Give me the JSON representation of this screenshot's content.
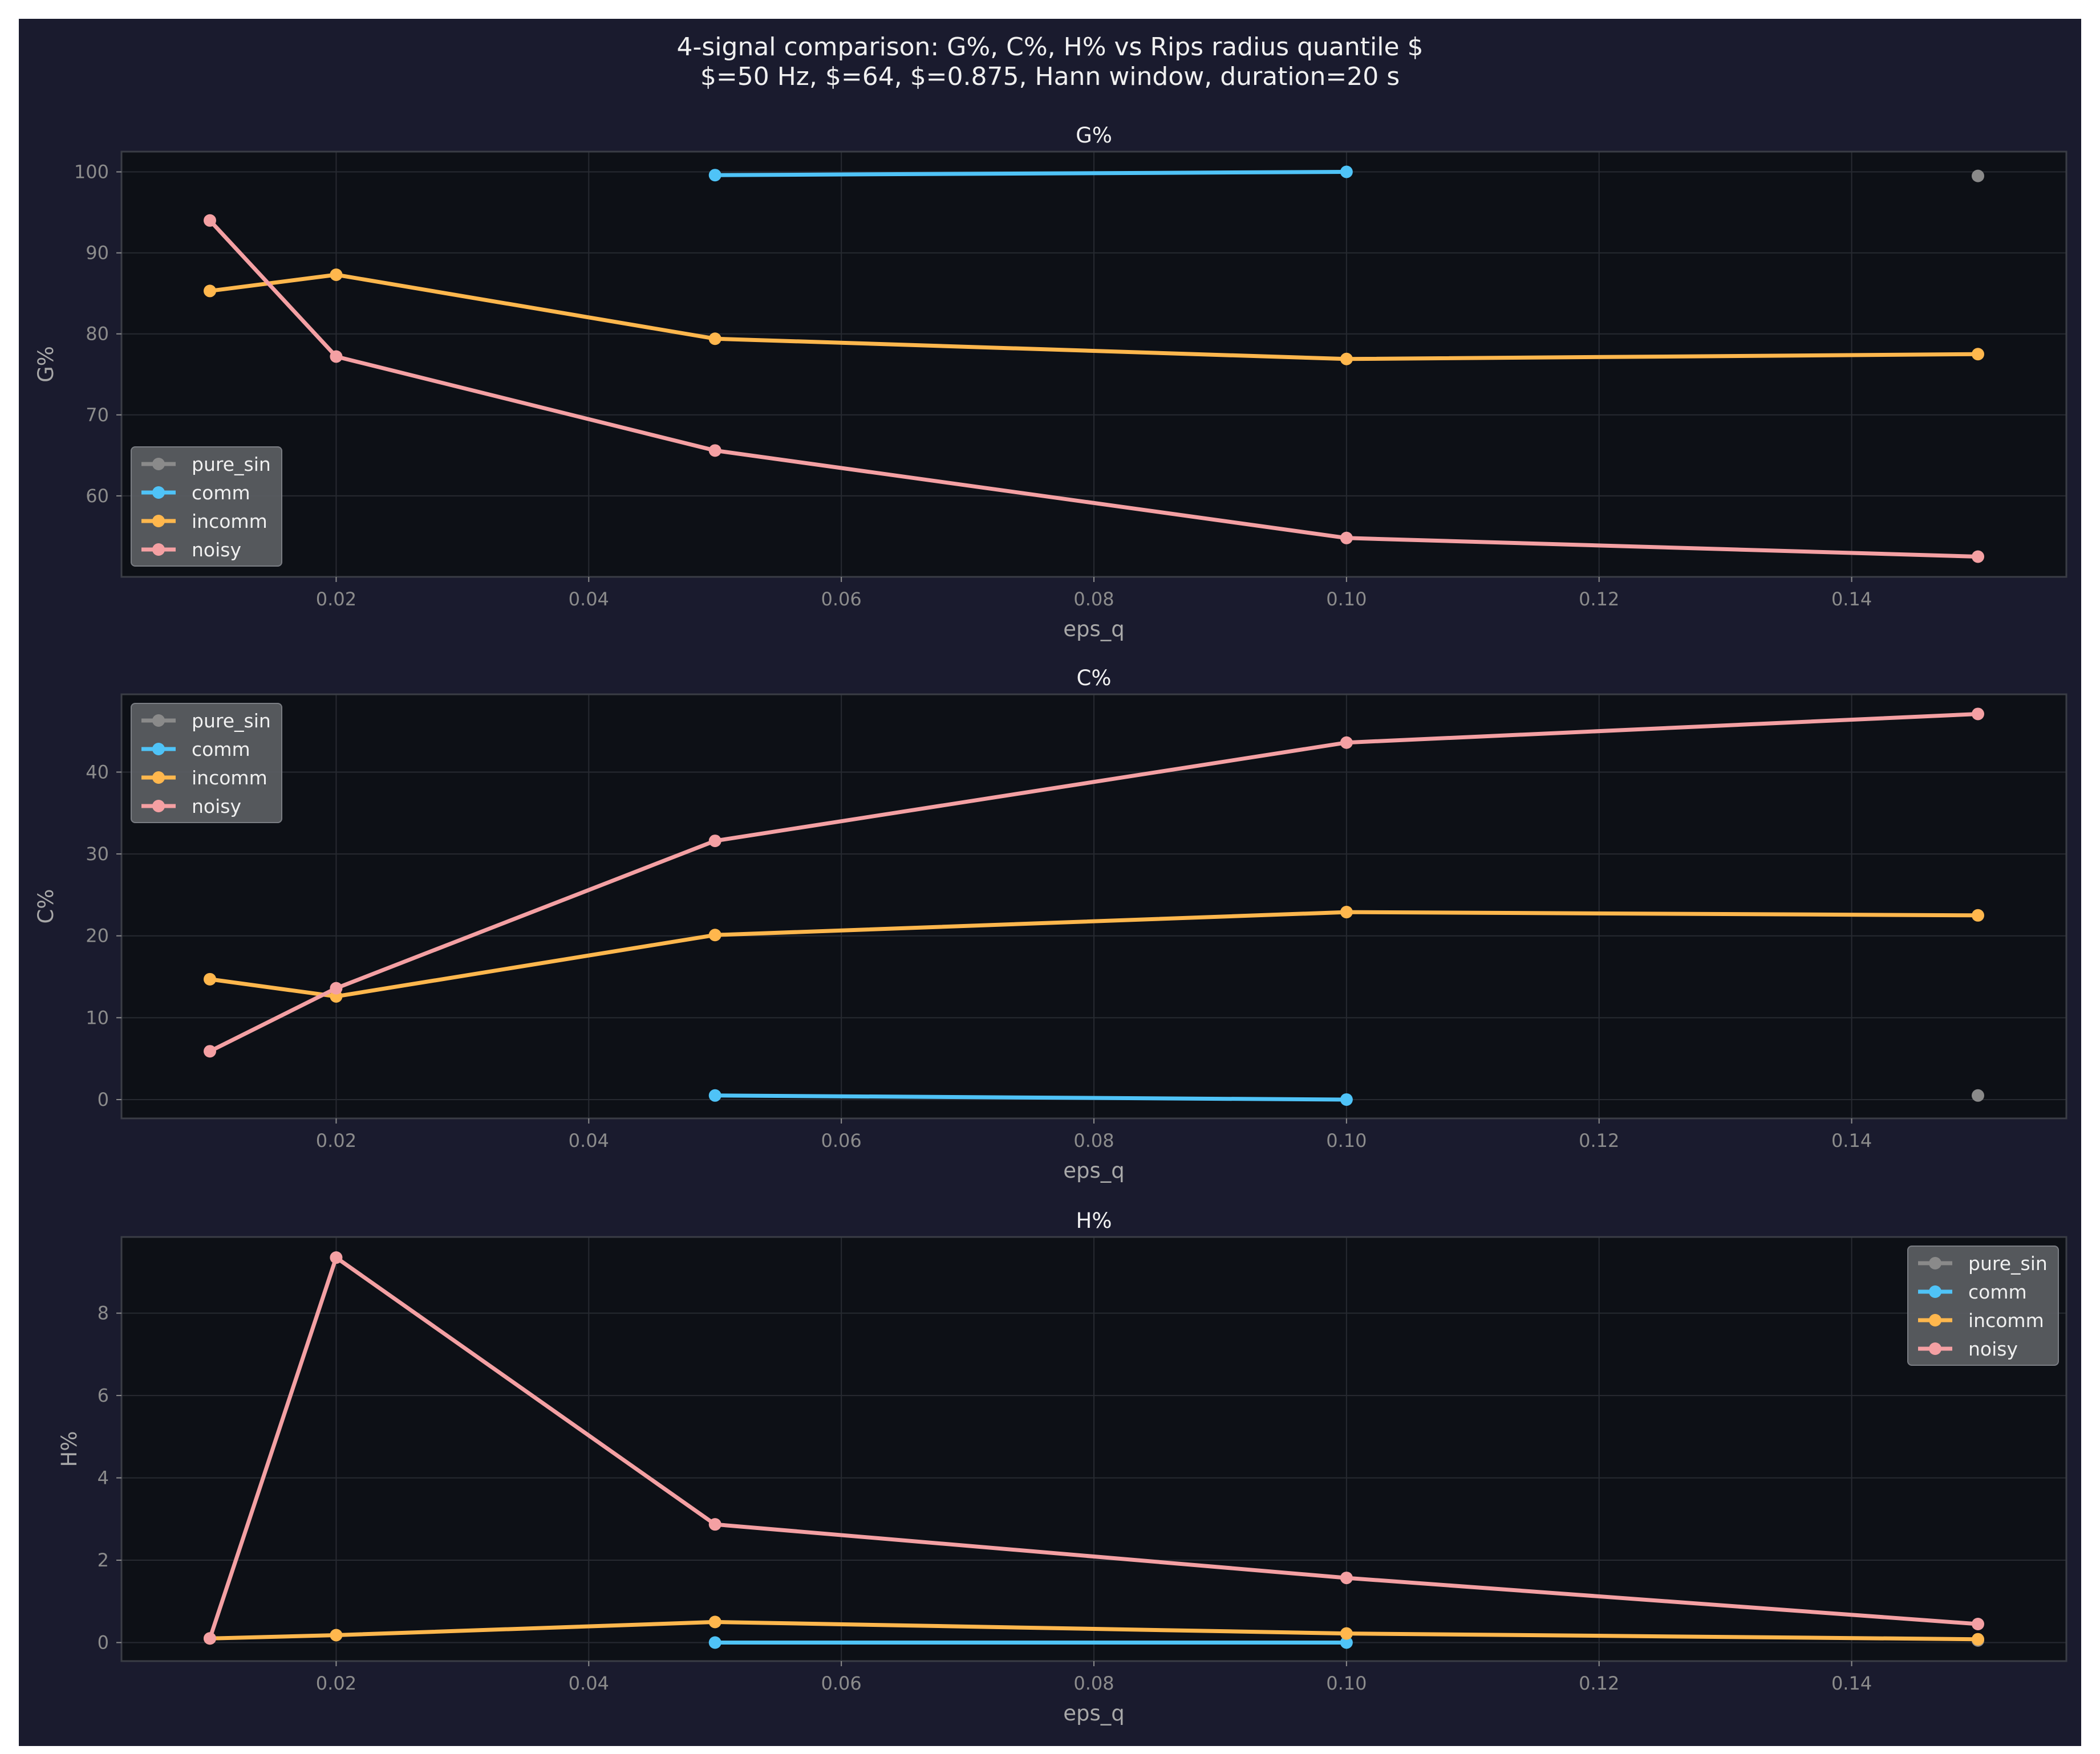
{
  "figure": {
    "title_line1": "4-signal comparison: G%, C%, H% vs Rips radius quantile $",
    "title_line2": "$=50 Hz, $=64, $=0.875, Hann window, duration=20 s"
  },
  "colors": {
    "pure_sin": "#8a8a8a",
    "comm": "#4fc3f7",
    "incomm": "#ffb74d",
    "noisy": "#f4a0a3",
    "figure_bg": "#1a1b2e",
    "plot_bg": "#0d1016",
    "legend_bg": "#5b5e63"
  },
  "chart_data": [
    {
      "type": "line",
      "title": "G%",
      "xlabel": "eps_q",
      "ylabel": "G%",
      "xlim": [
        0.003,
        0.157
      ],
      "ylim": [
        50,
        102.5
      ],
      "xticks": [
        0.02,
        0.04,
        0.06,
        0.08,
        0.1,
        0.12,
        0.14
      ],
      "xtick_labels": [
        "0.02",
        "0.04",
        "0.06",
        "0.08",
        "0.10",
        "0.12",
        "0.14"
      ],
      "yticks": [
        60,
        70,
        80,
        90,
        100
      ],
      "ytick_labels": [
        "60",
        "70",
        "80",
        "90",
        "100"
      ],
      "grid": true,
      "legend_position": "lower-left",
      "series": [
        {
          "name": "pure_sin",
          "x": [
            0.15
          ],
          "y": [
            99.5
          ]
        },
        {
          "name": "comm",
          "x": [
            0.05,
            0.1
          ],
          "y": [
            99.6,
            100.0
          ]
        },
        {
          "name": "incomm",
          "x": [
            0.01,
            0.02,
            0.05,
            0.1,
            0.15
          ],
          "y": [
            85.3,
            87.3,
            79.4,
            76.9,
            77.5
          ]
        },
        {
          "name": "noisy",
          "x": [
            0.01,
            0.02,
            0.05,
            0.1,
            0.15
          ],
          "y": [
            94.0,
            77.2,
            65.6,
            54.8,
            52.5
          ]
        }
      ]
    },
    {
      "type": "line",
      "title": "C%",
      "xlabel": "eps_q",
      "ylabel": "C%",
      "xlim": [
        0.003,
        0.157
      ],
      "ylim": [
        -2.3,
        49.5
      ],
      "xticks": [
        0.02,
        0.04,
        0.06,
        0.08,
        0.1,
        0.12,
        0.14
      ],
      "xtick_labels": [
        "0.02",
        "0.04",
        "0.06",
        "0.08",
        "0.10",
        "0.12",
        "0.14"
      ],
      "yticks": [
        0,
        10,
        20,
        30,
        40
      ],
      "ytick_labels": [
        "0",
        "10",
        "20",
        "30",
        "40"
      ],
      "grid": true,
      "legend_position": "upper-left",
      "series": [
        {
          "name": "pure_sin",
          "x": [
            0.15
          ],
          "y": [
            0.5
          ]
        },
        {
          "name": "comm",
          "x": [
            0.05,
            0.1
          ],
          "y": [
            0.5,
            0.0
          ]
        },
        {
          "name": "incomm",
          "x": [
            0.01,
            0.02,
            0.05,
            0.1,
            0.15
          ],
          "y": [
            14.7,
            12.6,
            20.1,
            22.9,
            22.5
          ]
        },
        {
          "name": "noisy",
          "x": [
            0.01,
            0.02,
            0.05,
            0.1,
            0.15
          ],
          "y": [
            5.9,
            13.6,
            31.6,
            43.6,
            47.1
          ]
        }
      ]
    },
    {
      "type": "line",
      "title": "H%",
      "xlabel": "eps_q",
      "ylabel": "H%",
      "xlim": [
        0.003,
        0.157
      ],
      "ylim": [
        -0.45,
        9.85
      ],
      "xticks": [
        0.02,
        0.04,
        0.06,
        0.08,
        0.1,
        0.12,
        0.14
      ],
      "xtick_labels": [
        "0.02",
        "0.04",
        "0.06",
        "0.08",
        "0.10",
        "0.12",
        "0.14"
      ],
      "yticks": [
        0,
        2,
        4,
        6,
        8
      ],
      "ytick_labels": [
        "0",
        "2",
        "4",
        "6",
        "8"
      ],
      "grid": true,
      "legend_position": "upper-right",
      "series": [
        {
          "name": "pure_sin",
          "x": [
            0.15
          ],
          "y": [
            0.05
          ]
        },
        {
          "name": "comm",
          "x": [
            0.05,
            0.1
          ],
          "y": [
            0.0,
            0.0
          ]
        },
        {
          "name": "incomm",
          "x": [
            0.01,
            0.02,
            0.05,
            0.1,
            0.15
          ],
          "y": [
            0.1,
            0.18,
            0.5,
            0.22,
            0.08
          ]
        },
        {
          "name": "noisy",
          "x": [
            0.01,
            0.02,
            0.05,
            0.1,
            0.15
          ],
          "y": [
            0.1,
            9.35,
            2.87,
            1.57,
            0.45
          ]
        }
      ]
    }
  ]
}
